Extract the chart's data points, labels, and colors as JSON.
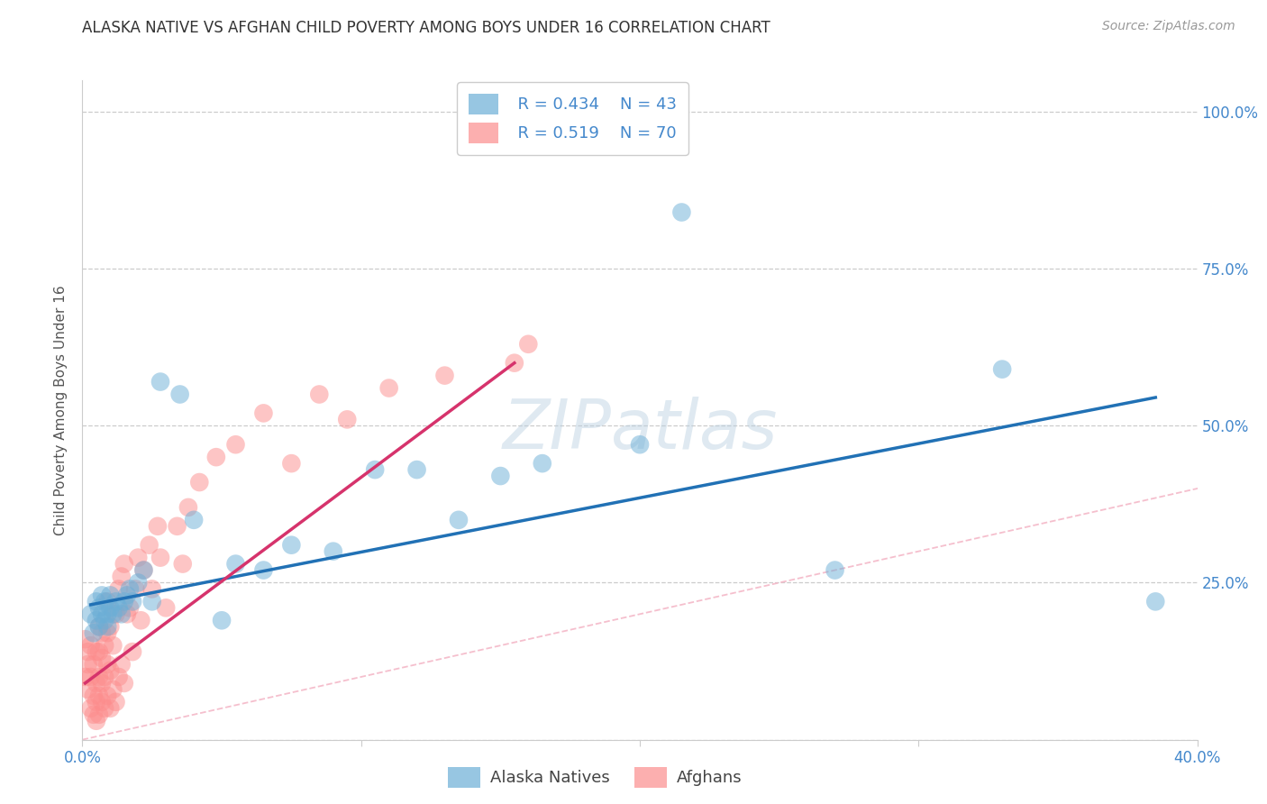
{
  "title": "ALASKA NATIVE VS AFGHAN CHILD POVERTY AMONG BOYS UNDER 16 CORRELATION CHART",
  "source": "Source: ZipAtlas.com",
  "ylabel": "Child Poverty Among Boys Under 16",
  "xlim": [
    0.0,
    0.4
  ],
  "ylim": [
    0.0,
    1.05
  ],
  "xticks": [
    0.0,
    0.1,
    0.2,
    0.3,
    0.4
  ],
  "xticklabels": [
    "0.0%",
    "",
    "",
    "",
    "40.0%"
  ],
  "yticks": [
    0.0,
    0.25,
    0.5,
    0.75,
    1.0
  ],
  "yticklabels": [
    "",
    "25.0%",
    "50.0%",
    "75.0%",
    "100.0%"
  ],
  "background_color": "#ffffff",
  "grid_color": "#cccccc",
  "watermark": "ZIPatlas",
  "legend_r_blue": "R = 0.434",
  "legend_n_blue": "N = 43",
  "legend_r_pink": "R = 0.519",
  "legend_n_pink": "N = 70",
  "blue_color": "#6baed6",
  "pink_color": "#fc8d8d",
  "blue_line_color": "#2171b5",
  "pink_line_color": "#d6336c",
  "diagonal_color": "#f4b8c8",
  "title_color": "#333333",
  "axis_label_color": "#555555",
  "tick_label_color_x": "#4488cc",
  "tick_label_color_y": "#4488cc",
  "alaska_x": [
    0.003,
    0.004,
    0.005,
    0.005,
    0.006,
    0.006,
    0.007,
    0.007,
    0.008,
    0.008,
    0.009,
    0.009,
    0.01,
    0.01,
    0.011,
    0.012,
    0.013,
    0.014,
    0.015,
    0.016,
    0.017,
    0.018,
    0.02,
    0.022,
    0.025,
    0.028,
    0.035,
    0.04,
    0.05,
    0.055,
    0.065,
    0.075,
    0.09,
    0.105,
    0.12,
    0.135,
    0.15,
    0.165,
    0.2,
    0.215,
    0.27,
    0.33,
    0.385
  ],
  "alaska_y": [
    0.2,
    0.17,
    0.19,
    0.22,
    0.18,
    0.21,
    0.2,
    0.23,
    0.19,
    0.22,
    0.18,
    0.2,
    0.21,
    0.23,
    0.2,
    0.22,
    0.21,
    0.2,
    0.22,
    0.23,
    0.24,
    0.22,
    0.25,
    0.27,
    0.22,
    0.57,
    0.55,
    0.35,
    0.19,
    0.28,
    0.27,
    0.31,
    0.3,
    0.43,
    0.43,
    0.35,
    0.42,
    0.44,
    0.47,
    0.84,
    0.27,
    0.59,
    0.22
  ],
  "afghan_x": [
    0.001,
    0.001,
    0.002,
    0.002,
    0.002,
    0.003,
    0.003,
    0.003,
    0.004,
    0.004,
    0.004,
    0.005,
    0.005,
    0.005,
    0.005,
    0.006,
    0.006,
    0.006,
    0.006,
    0.006,
    0.007,
    0.007,
    0.007,
    0.007,
    0.008,
    0.008,
    0.008,
    0.009,
    0.009,
    0.009,
    0.009,
    0.01,
    0.01,
    0.01,
    0.011,
    0.011,
    0.012,
    0.012,
    0.013,
    0.013,
    0.014,
    0.014,
    0.015,
    0.015,
    0.016,
    0.017,
    0.018,
    0.019,
    0.02,
    0.021,
    0.022,
    0.024,
    0.025,
    0.027,
    0.028,
    0.03,
    0.034,
    0.036,
    0.038,
    0.042,
    0.048,
    0.055,
    0.065,
    0.075,
    0.085,
    0.095,
    0.11,
    0.13,
    0.155,
    0.16
  ],
  "afghan_y": [
    0.16,
    0.1,
    0.12,
    0.08,
    0.14,
    0.05,
    0.1,
    0.15,
    0.04,
    0.07,
    0.12,
    0.03,
    0.06,
    0.09,
    0.14,
    0.04,
    0.07,
    0.1,
    0.14,
    0.18,
    0.06,
    0.09,
    0.13,
    0.17,
    0.05,
    0.1,
    0.15,
    0.07,
    0.12,
    0.17,
    0.22,
    0.05,
    0.11,
    0.18,
    0.08,
    0.15,
    0.06,
    0.2,
    0.1,
    0.24,
    0.12,
    0.26,
    0.09,
    0.28,
    0.2,
    0.21,
    0.14,
    0.24,
    0.29,
    0.19,
    0.27,
    0.31,
    0.24,
    0.34,
    0.29,
    0.21,
    0.34,
    0.28,
    0.37,
    0.41,
    0.45,
    0.47,
    0.52,
    0.44,
    0.55,
    0.51,
    0.56,
    0.58,
    0.6,
    0.63
  ],
  "blue_trend_x0": 0.003,
  "blue_trend_x1": 0.385,
  "blue_trend_y0": 0.215,
  "blue_trend_y1": 0.545,
  "pink_trend_x0": 0.001,
  "pink_trend_x1": 0.155,
  "pink_trend_y0": 0.09,
  "pink_trend_y1": 0.6
}
